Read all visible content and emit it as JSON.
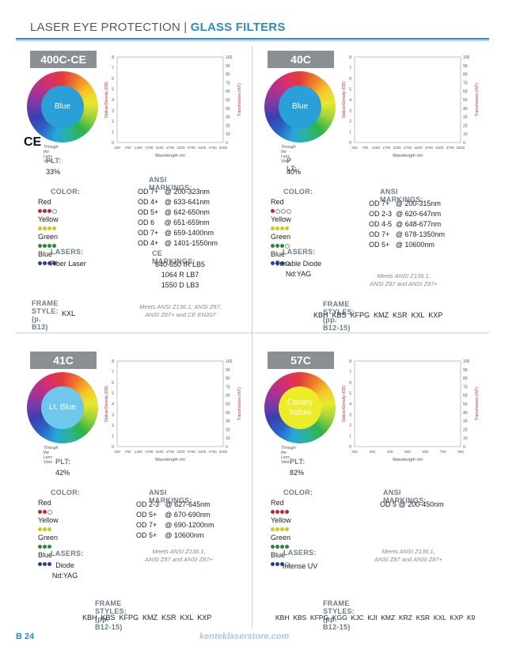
{
  "header": {
    "left": "LASER EYE PROTECTION |",
    "right": "GLASS FILTERS"
  },
  "footer": {
    "page": "B 24",
    "url": "kenteklaserstore.com"
  },
  "panels": {
    "p1": {
      "tab": "400C-CE",
      "lens": "Blue",
      "lens_color": "#2aa0d8",
      "caption": "Through the Lens View",
      "ce": "CE",
      "plt_label": "PLT:",
      "plt": "33%",
      "color_label": "COLOR:",
      "colors": [
        "Red",
        "Yellow",
        "Green",
        "Blue"
      ],
      "lasers_label": "LASERS:",
      "lasers": [
        "Fiber Laser"
      ],
      "ansi_label": "ANSI MARKINGS:",
      "ansi": [
        "OD 7+   @ 200-323nm",
        "OD 4+   @ 633-641nm",
        "OD 5+   @ 642-650nm",
        "OD 6     @ 651-659nm",
        "OD 7+   @ 659-1400nm",
        "OD 4+   @ 1401-1550nm"
      ],
      "ce_label": "CE MARKINGS:",
      "ce_markings": [
        "640-650 IR LB5",
        "1064 R LB7",
        "1550 D LB3"
      ],
      "note": [
        "Meets ANSI Z136.1, ANSI Z87,",
        "ANSI Z87+ and CE EN207"
      ],
      "frame_label": "FRAME STYLE: (p. B13)",
      "frames": "KXL",
      "chart": {
        "xlabel": "Wavelength nm",
        "ylabel_left": "Optical Density (OD)",
        "ylabel_right": "Transmission (%T)",
        "xticks": [
          "200",
          "700",
          "1200",
          "1700",
          "2200",
          "2700",
          "3200",
          "3700",
          "4200",
          "4700",
          "5200"
        ],
        "yticks_left": [
          "0",
          "1",
          "2",
          "3",
          "4",
          "5",
          "6",
          "7",
          "8"
        ],
        "yticks_right": [
          "0",
          "10",
          "20",
          "30",
          "40",
          "50",
          "60",
          "70",
          "80",
          "90",
          "100"
        ]
      }
    },
    "p2": {
      "tab": "40C",
      "lens": "Blue",
      "lens_color": "#2aa0d8",
      "caption": "Through the Lens View",
      "plt_label": "P LT:",
      "plt": "40%",
      "color_label": "COLOR:",
      "colors": [
        "Red",
        "Yellow",
        "Green",
        "Blue"
      ],
      "lasers_label": "LASERS:",
      "lasers": [
        "Tunable Diode",
        "Nd:YAG"
      ],
      "ansi_label": "ANSI MARKINGS:",
      "ansi": [
        "OD 7+   @ 200-315nm",
        "OD 2-3  @ 620-647nm",
        "OD 4-5  @ 648-677nm",
        "OD 7+   @ 678-1350nm",
        "OD 5+   @ 10600nm"
      ],
      "note": [
        "Meets ANSI Z136.1,",
        "ANSI Z87 and ANSI Z87+"
      ],
      "frame_label": "FRAME STYLES: (pp. B12-15)",
      "frames": "KBH  KBS  KFPG  KMZ  KSR  KXL  KXP",
      "chart": {
        "xlabel": "Wavelength nm",
        "ylabel_left": "Optical Density (OD)",
        "ylabel_right": "Transmission (%T)",
        "xticks": [
          "200",
          "700",
          "1200",
          "1700",
          "2200",
          "2700",
          "3200",
          "3700",
          "4200",
          "4700",
          "5200"
        ],
        "yticks_left": [
          "0",
          "1",
          "2",
          "3",
          "4",
          "5",
          "6",
          "7",
          "8"
        ],
        "yticks_right": [
          "0",
          "10",
          "20",
          "30",
          "40",
          "50",
          "60",
          "70",
          "80",
          "90",
          "100"
        ]
      }
    },
    "p3": {
      "tab": "41C",
      "lens": "Lt. Blue",
      "lens_color": "#6fc7ee",
      "caption": "Through the Lens View",
      "plt_label": "PLT:",
      "plt": "42%",
      "color_label": "COLOR:",
      "colors": [
        "Red",
        "Yellow",
        "Green",
        "Blue"
      ],
      "lasers_label": "LASERS:",
      "lasers": [
        "Diode",
        "Nd:YAG"
      ],
      "ansi_label": "ANSI MARKINGS:",
      "ansi": [
        "OD 2-3   @ 627-645nm",
        "OD 5+    @ 670-690nm",
        "OD 7+    @ 690-1200nm",
        "OD 5+    @ 10600nm"
      ],
      "note": [
        "Meets ANSI Z136.1,",
        "ANSI Z87 and ANSI Z87+"
      ],
      "frame_label": "FRAME STYLES: (pp. B12-15)",
      "frames": "KBH  KBS  KFPG  KMZ  KSR  KXL  KXP",
      "chart": {
        "xlabel": "Wavelength nm",
        "ylabel_left": "Optical Density (OD)",
        "ylabel_right": "Transmission (%T)",
        "xticks": [
          "200",
          "700",
          "1200",
          "1700",
          "2200",
          "2700",
          "3200",
          "3700",
          "4200",
          "4700",
          "5200"
        ],
        "yticks_left": [
          "0",
          "1",
          "2",
          "3",
          "4",
          "5",
          "6",
          "7",
          "8"
        ],
        "yticks_right": [
          "0",
          "10",
          "20",
          "30",
          "40",
          "50",
          "60",
          "70",
          "80",
          "90",
          "100"
        ]
      }
    },
    "p4": {
      "tab": "57C",
      "lens": "Canary Yellow",
      "lens_color": "#ecec2a",
      "caption": "Through the Lens View",
      "plt_label": "PLT:",
      "plt": "82%",
      "color_label": "COLOR:",
      "colors": [
        "Red",
        "Yellow",
        "Green",
        "Blue"
      ],
      "lasers_label": "LASERS:",
      "lasers": [
        "Intense UV"
      ],
      "ansi_label": "ANSI MARKINGS:",
      "ansi": [
        "OD 5 @ 200-450nm"
      ],
      "note": [
        "Meets ANSI Z136.1,",
        "ANSI Z87 and ANSI Z87+"
      ],
      "frame_label": "FRAME STYLES: (pp. B12-15)",
      "frames": "KBH  KBS  KFPG  KGG  KJC  KJI  KMZ  KRZ  KSR  KXL  KXP  K9",
      "chart": {
        "xlabel": "Wavelength nm",
        "ylabel_left": "Optical Density (OD)",
        "ylabel_right": "Transmission (%T)",
        "xticks": [
          "200",
          "300",
          "400",
          "500",
          "600",
          "700",
          "800"
        ],
        "yticks_left": [
          "0",
          "1",
          "2",
          "3",
          "4",
          "5",
          "6",
          "7",
          "8"
        ],
        "yticks_right": [
          "0",
          "10",
          "20",
          "30",
          "40",
          "50",
          "60",
          "70",
          "80",
          "90",
          "100"
        ]
      }
    }
  },
  "dots": {
    "p1": [
      [
        "f",
        "f",
        "f",
        "o"
      ],
      [
        "f",
        "f",
        "f",
        "f"
      ],
      [
        "f",
        "f",
        "f",
        "f"
      ],
      [
        "f",
        "f",
        "f",
        "f"
      ]
    ],
    "p2": [
      [
        "f",
        "o",
        "o",
        "o"
      ],
      [
        "f",
        "f",
        "f",
        "f"
      ],
      [
        "f",
        "f",
        "f",
        "o"
      ],
      [
        "f",
        "f",
        "f",
        "o"
      ]
    ],
    "p3": [
      [
        "f",
        "f",
        "o"
      ],
      [
        "f",
        "f",
        "f"
      ],
      [
        "f",
        "f",
        "f"
      ],
      [
        "f",
        "f",
        "f"
      ]
    ],
    "p4": [
      [
        "f",
        "f",
        "f",
        "f"
      ],
      [
        "f",
        "f",
        "f",
        "f"
      ],
      [
        "f",
        "f",
        "f",
        "f"
      ],
      [
        "f",
        "f",
        "f",
        "o"
      ]
    ]
  },
  "dot_colors": [
    "#c0283a",
    "#d8c21c",
    "#2c8a3a",
    "#2b3f8f"
  ]
}
